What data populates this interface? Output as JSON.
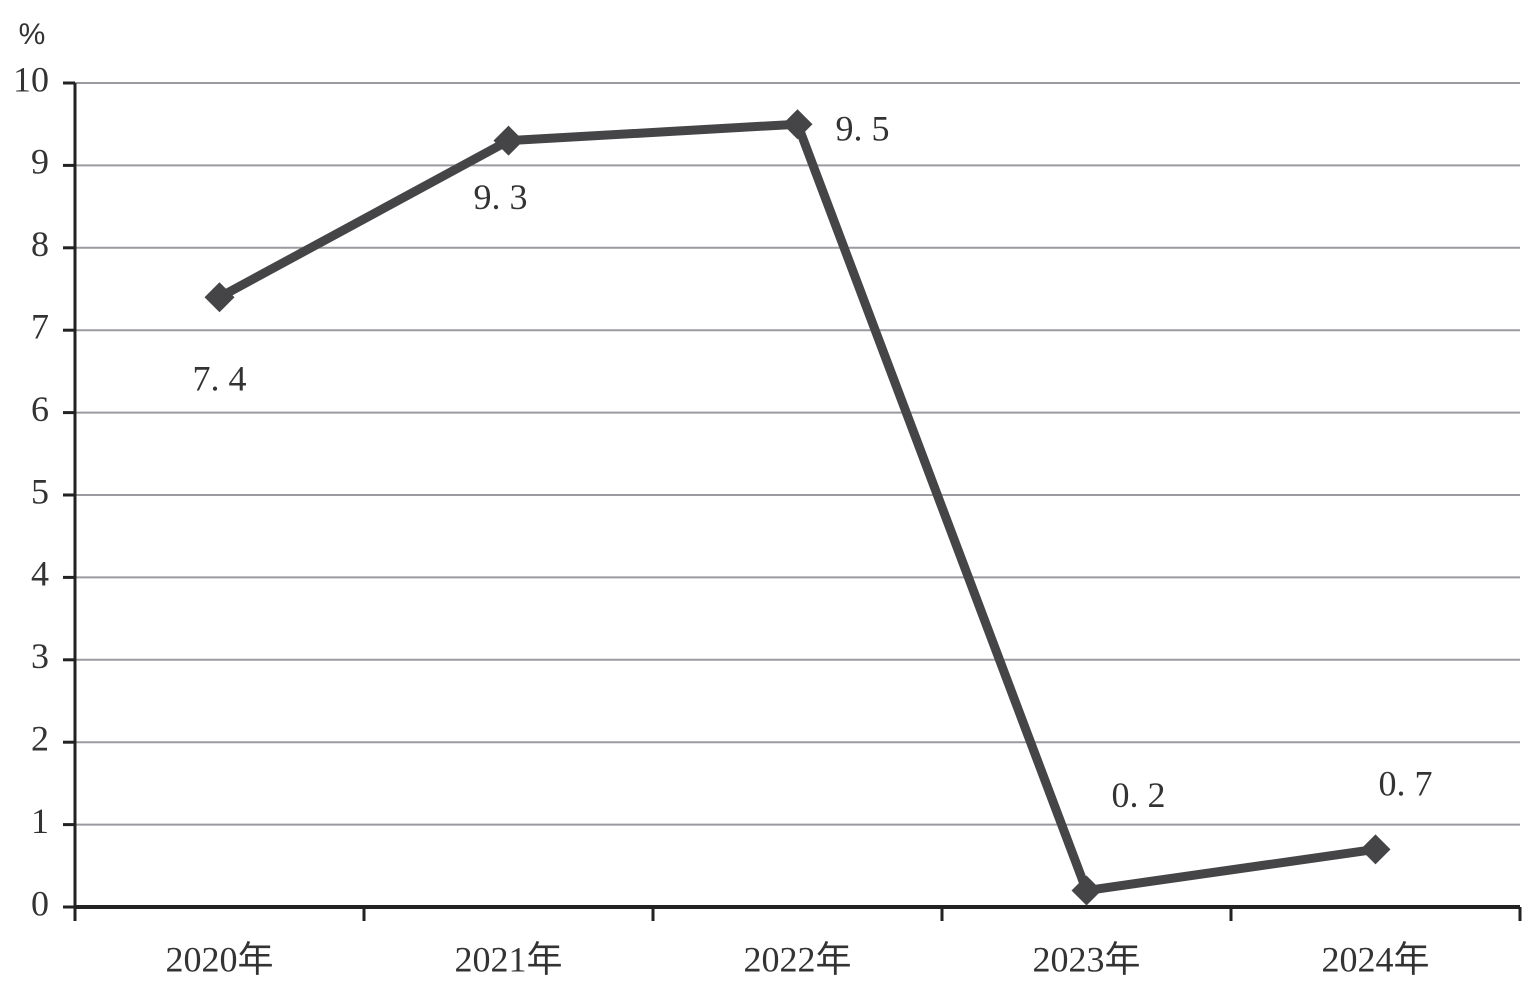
{
  "chart_data": {
    "type": "line",
    "y_label": "%",
    "categories": [
      "2020年",
      "2021年",
      "2022年",
      "2023年",
      "2024年"
    ],
    "series": [
      {
        "color": "#454548",
        "values": [
          7.4,
          9.3,
          9.5,
          0.2,
          0.7
        ],
        "value_labels": [
          "7. 4",
          "9. 3",
          "9. 5",
          "0. 2",
          "0. 7"
        ]
      }
    ],
    "ylim": [
      0,
      10
    ],
    "yticks": [
      0,
      1,
      2,
      3,
      4,
      5,
      6,
      7,
      8,
      9,
      10
    ],
    "grid": true
  }
}
